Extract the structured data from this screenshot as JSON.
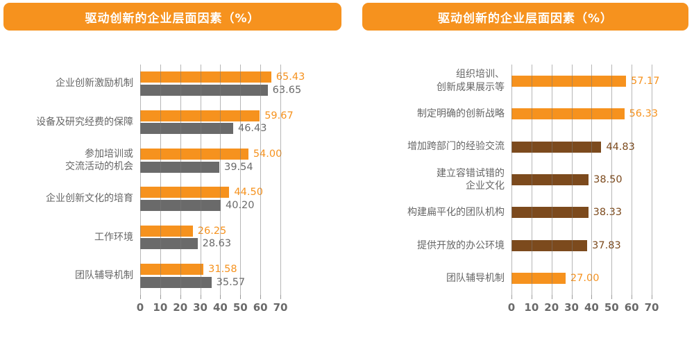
{
  "page": {
    "background": "#FFFFFF"
  },
  "colors": {
    "banner_orange": "#F6921E",
    "bar_orange": "#F6921E",
    "bar_gray": "#6A6A6A",
    "bar_brown": "#7C4A1D",
    "category_text": "#666666",
    "axis_text": "#6A6A6A",
    "gridline": "#7A7A7A"
  },
  "chart_data": [
    {
      "type": "bar",
      "orientation": "horizontal",
      "title": "驱动创新的企业层面因素（%）",
      "grid": true,
      "value_labels": true,
      "xlim": [
        0,
        70
      ],
      "x_ticks": [
        0,
        10,
        20,
        30,
        40,
        50,
        60,
        70
      ],
      "categories": [
        [
          "企业创新激励机制"
        ],
        [
          "设备及研究经费的保障"
        ],
        [
          "参加培训或",
          "交流活动的机会"
        ],
        [
          "企业创新文化的培育"
        ],
        [
          "工作环境"
        ],
        [
          "团队辅导机制"
        ]
      ],
      "series": [
        {
          "name": "orange-series",
          "color": "#F6921E",
          "values": [
            65.43,
            59.67,
            54.0,
            44.5,
            26.25,
            31.58
          ]
        },
        {
          "name": "gray-series",
          "color": "#6A6A6A",
          "values": [
            63.65,
            46.43,
            39.54,
            40.2,
            28.63,
            35.57
          ]
        }
      ]
    },
    {
      "type": "bar",
      "orientation": "horizontal",
      "title": "驱动创新的企业层面因素（%）",
      "grid": true,
      "value_labels": true,
      "xlim": [
        0,
        70
      ],
      "x_ticks": [
        0,
        10,
        20,
        30,
        40,
        50,
        60,
        70
      ],
      "categories": [
        [
          "组织培训、",
          "创新成果展示等"
        ],
        [
          "制定明确的创新战略"
        ],
        [
          "增加跨部门的经验交流"
        ],
        [
          "建立容错试错的",
          "企业文化"
        ],
        [
          "构建扁平化的团队机构"
        ],
        [
          "提供开放的办公环境"
        ],
        [
          "团队辅导机制"
        ]
      ],
      "series": [
        {
          "name": "single-series",
          "colors": [
            "#F6921E",
            "#F6921E",
            "#7C4A1D",
            "#7C4A1D",
            "#7C4A1D",
            "#7C4A1D",
            "#F6921E"
          ],
          "values": [
            57.17,
            56.33,
            44.83,
            38.5,
            38.33,
            37.83,
            27.0
          ]
        }
      ]
    }
  ]
}
